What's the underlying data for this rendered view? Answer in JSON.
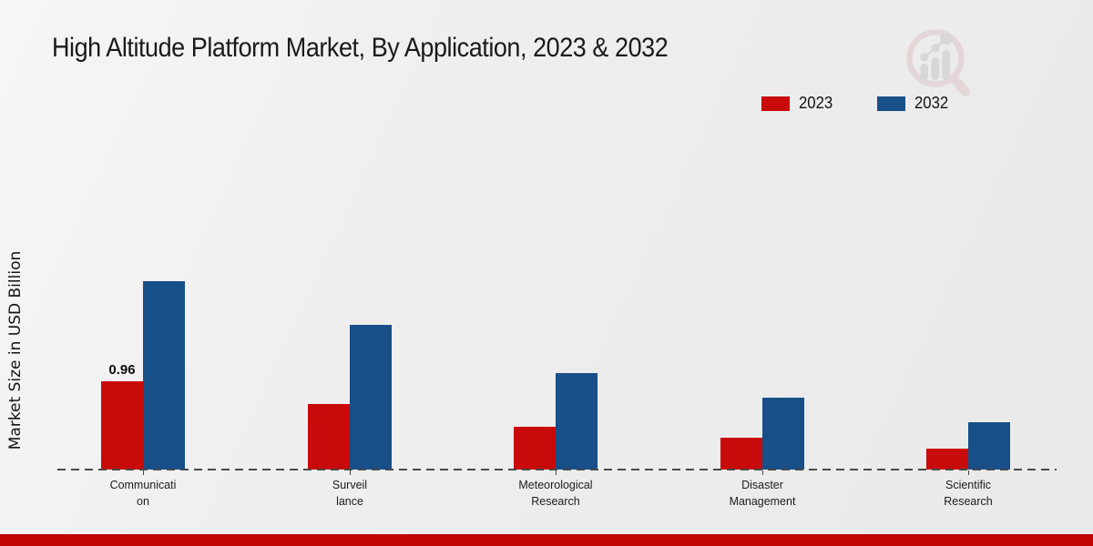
{
  "title": "High Altitude Platform Market, By Application, 2023 & 2032",
  "y_axis_label": "Market Size in USD Billion",
  "legend": {
    "position": "top-right",
    "items": [
      {
        "label": "2023",
        "color": "#c90a0a"
      },
      {
        "label": "2032",
        "color": "#174f88"
      }
    ]
  },
  "colors": {
    "background": "#ededed",
    "title_text": "#1a1a1a",
    "baseline_dash": "#4a4a4a",
    "footer_bar": "#c00404",
    "series_2023": "#c90a0a",
    "series_2032": "#174f88"
  },
  "chart_data": {
    "type": "bar",
    "title": "High Altitude Platform Market, By Application, 2023 & 2032",
    "xlabel": "",
    "ylabel": "Market Size in USD Billion",
    "ylim": [
      0,
      2.2
    ],
    "grid": false,
    "baseline_style": "dashed",
    "legend_position": "top-right",
    "categories": [
      "Communication",
      "Surveillance",
      "Meteorological Research",
      "Disaster Management",
      "Scientific Research"
    ],
    "category_label_lines": [
      [
        "Communicati",
        "on"
      ],
      [
        "Surveil",
        "lance"
      ],
      [
        "Meteorological",
        "Research"
      ],
      [
        "Disaster",
        "Management"
      ],
      [
        "Scientific",
        "Research"
      ]
    ],
    "series": [
      {
        "name": "2023",
        "color": "#c90a0a",
        "values": [
          0.96,
          0.71,
          0.47,
          0.35,
          0.23
        ],
        "value_labels": [
          "0.96",
          "",
          "",
          "",
          ""
        ]
      },
      {
        "name": "2032",
        "color": "#174f88",
        "values": [
          2.05,
          1.57,
          1.05,
          0.78,
          0.51
        ],
        "value_labels": [
          "",
          "",
          "",
          "",
          ""
        ]
      }
    ]
  }
}
